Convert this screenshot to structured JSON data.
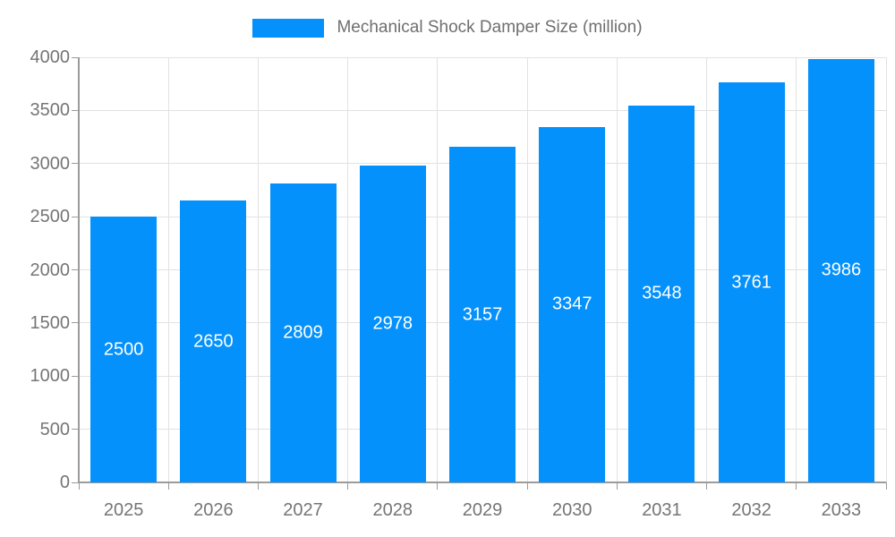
{
  "page": {
    "background_color": "#ffffff"
  },
  "legend": {
    "label": "Mechanical Shock Damper Size (million)",
    "swatch_color": "#0591fb",
    "text_color": "#6f6f6f",
    "position": "top-center"
  },
  "chart_data": {
    "type": "bar",
    "title": "Mechanical Shock Damper Size (million)",
    "categories": [
      "2025",
      "2026",
      "2027",
      "2028",
      "2029",
      "2030",
      "2031",
      "2032",
      "2033"
    ],
    "values": [
      2500,
      2650,
      2809,
      2978,
      3157,
      3347,
      3548,
      3761,
      3986
    ],
    "xlabel": "",
    "ylabel": "",
    "ylim": [
      0,
      4000
    ],
    "yticks": [
      0,
      500,
      1000,
      1500,
      2000,
      2500,
      3000,
      3500,
      4000
    ],
    "grid": true,
    "legend_position": "top",
    "bar_color": "#0591fb",
    "value_label_color": "#ffffff",
    "axis_label_color": "#757575",
    "gridline_color": "#e2e2e2",
    "axis_line_color": "#9b9b9b"
  }
}
